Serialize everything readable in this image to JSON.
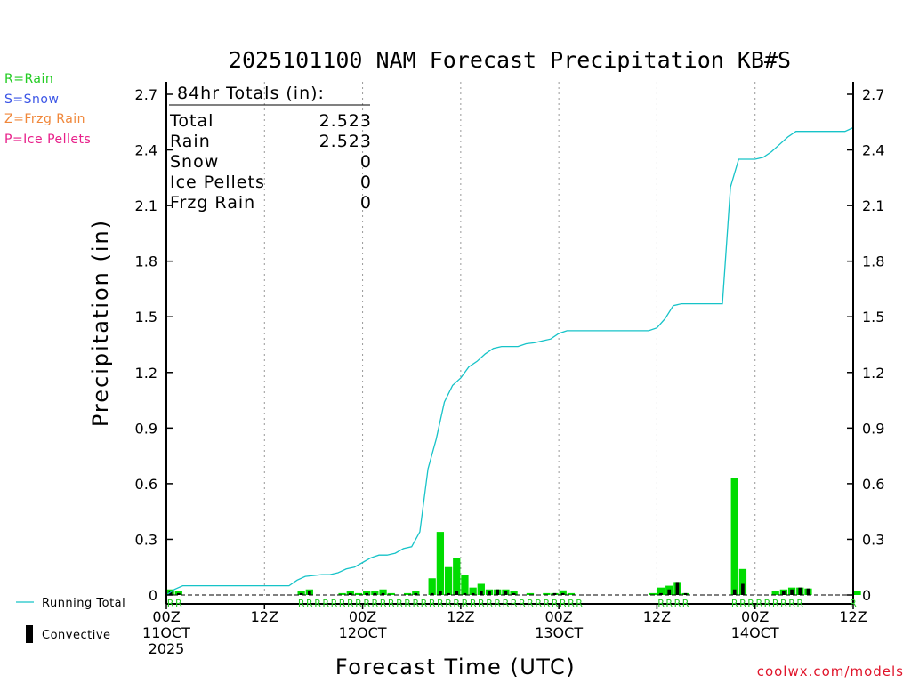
{
  "chart_data": {
    "type": "bar",
    "title": "2025101100 NAM Forecast Precipitation KB#S",
    "ylabel": "Precipitation (in)",
    "xlabel": "Forecast Time (UTC)",
    "ylim": [
      0,
      2.7
    ],
    "yticks": [
      "0",
      "0.3",
      "0.6",
      "0.9",
      "1.2",
      "1.5",
      "1.8",
      "2.1",
      "2.4",
      "2.7"
    ],
    "x_range_hours": [
      0,
      84
    ],
    "x_ticks": [
      {
        "hour": 0,
        "lines": [
          "00Z",
          "11OCT",
          "2025"
        ]
      },
      {
        "hour": 12,
        "lines": [
          "12Z"
        ]
      },
      {
        "hour": 24,
        "lines": [
          "00Z",
          "12OCT"
        ]
      },
      {
        "hour": 36,
        "lines": [
          "12Z"
        ]
      },
      {
        "hour": 48,
        "lines": [
          "00Z",
          "13OCT"
        ]
      },
      {
        "hour": 60,
        "lines": [
          "12Z"
        ]
      },
      {
        "hour": 72,
        "lines": [
          "00Z",
          "14OCT"
        ]
      },
      {
        "hour": 84,
        "lines": [
          "12Z"
        ]
      }
    ],
    "series": [
      {
        "name": "Hourly Precipitation",
        "color": "#00dc00",
        "values": [
          0.03,
          0.02,
          0,
          0,
          0,
          0,
          0,
          0,
          0,
          0,
          0,
          0,
          0,
          0,
          0,
          0,
          0.02,
          0.03,
          0,
          0,
          0,
          0.01,
          0.02,
          0.01,
          0.02,
          0.02,
          0.03,
          0.01,
          0,
          0.01,
          0.02,
          0,
          0.09,
          0.34,
          0.15,
          0.2,
          0.11,
          0.04,
          0.06,
          0.03,
          0.03,
          0.03,
          0.02,
          0,
          0.01,
          0,
          0.01,
          0.01,
          0.025,
          0.01,
          0,
          0,
          0,
          0,
          0,
          0,
          0,
          0,
          0,
          0.01,
          0.04,
          0.05,
          0.07,
          0.01,
          0,
          0,
          0,
          0,
          0,
          0.63,
          0.14,
          0,
          0,
          0,
          0.02,
          0.03,
          0.04,
          0.04,
          0.035,
          0,
          0,
          0,
          0,
          0,
          0.02
        ]
      },
      {
        "name": "Convective",
        "color": "#000000",
        "values": [
          0.02,
          0.01,
          0,
          0,
          0,
          0,
          0,
          0,
          0,
          0,
          0,
          0,
          0,
          0,
          0,
          0,
          0.01,
          0.02,
          0,
          0,
          0,
          0,
          0.01,
          0,
          0.01,
          0.01,
          0.01,
          0,
          0,
          0,
          0.01,
          0,
          0.01,
          0.02,
          0.01,
          0.02,
          0.01,
          0.01,
          0.02,
          0.02,
          0.03,
          0.02,
          0.01,
          0,
          0,
          0,
          0,
          0.01,
          0.01,
          0,
          0,
          0,
          0,
          0,
          0,
          0,
          0,
          0,
          0,
          0,
          0.01,
          0.03,
          0.07,
          0.01,
          0,
          0,
          0,
          0,
          0,
          0.03,
          0.06,
          0,
          0,
          0,
          0,
          0.02,
          0.03,
          0.04,
          0.035,
          0,
          0,
          0,
          0,
          0,
          0
        ]
      },
      {
        "name": "Running Total",
        "color": "#16c3c8",
        "values": [
          0,
          0.03,
          0.05,
          0.05,
          0.05,
          0.05,
          0.05,
          0.05,
          0.05,
          0.05,
          0.05,
          0.05,
          0.05,
          0.05,
          0.05,
          0.05,
          0.08,
          0.1,
          0.105,
          0.11,
          0.11,
          0.12,
          0.14,
          0.15,
          0.175,
          0.2,
          0.215,
          0.215,
          0.225,
          0.25,
          0.26,
          0.34,
          0.68,
          0.84,
          1.04,
          1.13,
          1.17,
          1.23,
          1.26,
          1.3,
          1.33,
          1.34,
          1.34,
          1.34,
          1.355,
          1.36,
          1.37,
          1.38,
          1.41,
          1.425,
          1.425,
          1.425,
          1.425,
          1.425,
          1.425,
          1.425,
          1.425,
          1.425,
          1.425,
          1.425,
          1.44,
          1.49,
          1.56,
          1.57,
          1.57,
          1.57,
          1.57,
          1.57,
          1.57,
          2.2,
          2.35,
          2.35,
          2.35,
          2.36,
          2.39,
          2.43,
          2.47,
          2.5,
          2.5,
          2.5,
          2.5,
          2.5,
          2.5,
          2.5,
          2.52
        ]
      }
    ],
    "ptype_hours": [
      0,
      1,
      16,
      17,
      18,
      19,
      20,
      21,
      22,
      23,
      24,
      25,
      26,
      27,
      28,
      29,
      30,
      31,
      32,
      33,
      34,
      35,
      36,
      37,
      38,
      39,
      40,
      41,
      42,
      43,
      44,
      45,
      46,
      47,
      48,
      49,
      50,
      60,
      61,
      62,
      63,
      69,
      70,
      71,
      72,
      73,
      74,
      75,
      76,
      77,
      84
    ],
    "ptype_code": "R"
  },
  "totals": {
    "header": "84hr Totals (in):",
    "rows": [
      {
        "label": "Total",
        "value": "2.523"
      },
      {
        "label": "Rain",
        "value": "2.523"
      },
      {
        "label": "Snow",
        "value": "0"
      },
      {
        "label": "Ice Pellets",
        "value": "0"
      },
      {
        "label": "Frzg Rain",
        "value": "0"
      }
    ]
  },
  "legend": {
    "types": [
      {
        "text": "R=Rain",
        "color": "#22cc22"
      },
      {
        "text": "S=Snow",
        "color": "#3b55e6"
      },
      {
        "text": "Z=Frzg Rain",
        "color": "#f0873a"
      },
      {
        "text": "P=Ice Pellets",
        "color": "#e8208a"
      }
    ],
    "running_total": "Running Total",
    "convective": "Convective"
  },
  "footer": "coolwx.com/models"
}
